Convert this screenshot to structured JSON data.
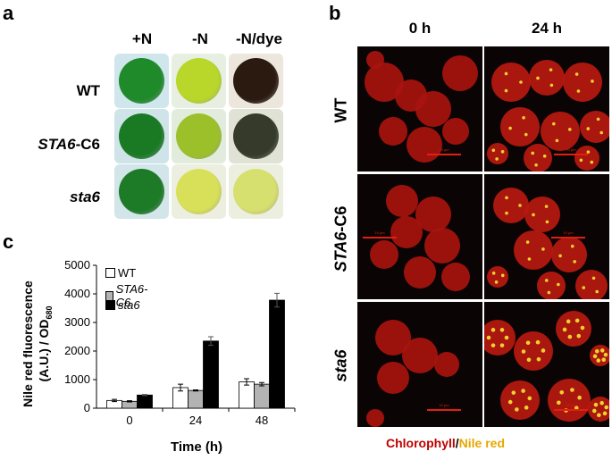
{
  "panels": {
    "a": "a",
    "b": "b",
    "c": "c"
  },
  "panel_a": {
    "columns": [
      "+N",
      "-N",
      "-N/dye"
    ],
    "rows": [
      "WT",
      "STA6-C6",
      "sta6"
    ],
    "row_labels": {
      "wt": {
        "text": "WT",
        "italic": false
      },
      "c6": {
        "prefix": "STA6",
        "suffix": "-C6"
      },
      "sta6": {
        "text": "sta6",
        "italic": true
      }
    },
    "plate_colors": [
      [
        "#1f8a2a",
        "#b9d62a",
        "#2a1a10"
      ],
      [
        "#1a7a24",
        "#9cc02a",
        "#353a2a"
      ],
      [
        "#1d7a26",
        "#d8e05a",
        "#d6e06e"
      ]
    ]
  },
  "panel_b": {
    "columns": [
      "0 h",
      "24 h"
    ],
    "rows": [
      "WT",
      "STA6-C6",
      "sta6"
    ],
    "row_labels": {
      "wt": "WT",
      "c6_prefix": "STA6",
      "c6_suffix": "-C6",
      "sta6": "sta6"
    },
    "scale_bar_label": "10 μm",
    "caption": {
      "part1": "Chlorophyll",
      "sep": "/",
      "part2": "Nile red"
    },
    "colors": {
      "chlorophyll": "#c00000",
      "nile_red": "#e5a800"
    }
  },
  "chart_data": {
    "type": "bar",
    "categories": [
      "0",
      "24",
      "48"
    ],
    "series": [
      {
        "name": "WT",
        "values": [
          270,
          720,
          920
        ],
        "errors": [
          40,
          120,
          110
        ],
        "color": "#ffffff"
      },
      {
        "name": "STA6-C6",
        "values": [
          240,
          620,
          840
        ],
        "errors": [
          20,
          20,
          60
        ],
        "color": "#b3b3b3"
      },
      {
        "name": "sta6",
        "values": [
          460,
          2350,
          3780
        ],
        "errors": [
          20,
          150,
          240
        ],
        "color": "#000000"
      }
    ],
    "xlabel": "Time (h)",
    "ylabel_line1": "Nile red fluorescence",
    "ylabel_line2": "(A.U.) / OD",
    "ylabel_sub": "680",
    "ylim": [
      0,
      5000
    ],
    "yticks": [
      0,
      1000,
      2000,
      3000,
      4000,
      5000
    ],
    "legend_position": "top-left"
  }
}
